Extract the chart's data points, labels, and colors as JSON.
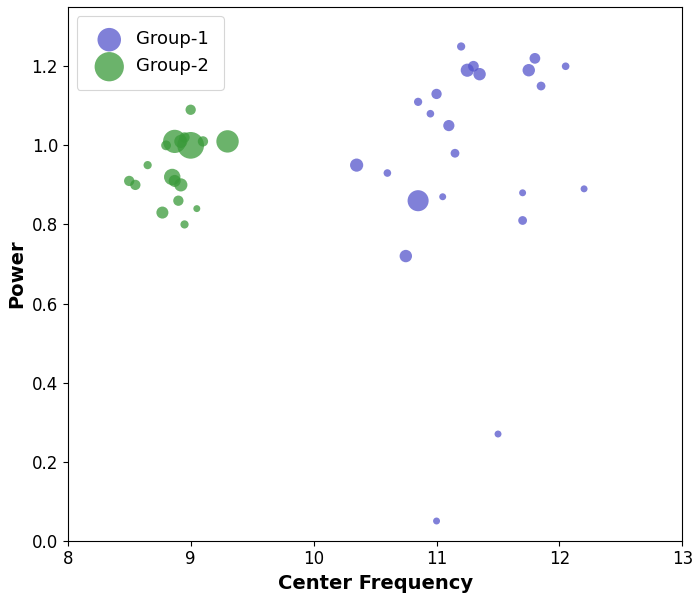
{
  "title": "",
  "xlabel": "Center Frequency",
  "ylabel": "Power",
  "xlim": [
    8,
    13
  ],
  "ylim": [
    0,
    1.35
  ],
  "xticks": [
    8,
    9,
    10,
    11,
    12,
    13
  ],
  "yticks": [
    0.0,
    0.2,
    0.4,
    0.6,
    0.8,
    1.0,
    1.2
  ],
  "group1": {
    "label": "Group-1",
    "color": "#5555cc",
    "x": [
      10.35,
      10.6,
      10.75,
      10.85,
      10.85,
      10.95,
      11.0,
      11.05,
      11.1,
      11.15,
      11.2,
      11.25,
      11.3,
      11.35,
      11.7,
      11.75,
      11.8,
      11.85,
      12.05,
      11.5,
      11.0,
      11.7,
      12.2
    ],
    "y": [
      0.95,
      0.93,
      0.72,
      1.11,
      0.86,
      1.08,
      1.13,
      0.87,
      1.05,
      0.98,
      1.25,
      1.19,
      1.2,
      1.18,
      0.81,
      1.19,
      1.22,
      1.15,
      1.2,
      0.27,
      0.05,
      0.88,
      0.89
    ],
    "size": [
      90,
      30,
      80,
      35,
      230,
      30,
      55,
      25,
      65,
      40,
      35,
      90,
      60,
      80,
      40,
      80,
      60,
      40,
      30,
      25,
      25,
      25,
      25
    ]
  },
  "group2": {
    "label": "Group-2",
    "color": "#3a9a3a",
    "x": [
      8.5,
      8.55,
      8.65,
      8.77,
      8.8,
      8.85,
      8.87,
      8.87,
      8.9,
      8.92,
      8.92,
      8.95,
      8.95,
      9.0,
      9.0,
      9.05,
      9.1,
      9.3
    ],
    "y": [
      0.91,
      0.9,
      0.95,
      0.83,
      1.0,
      0.92,
      1.01,
      0.91,
      0.86,
      1.01,
      0.9,
      1.02,
      0.8,
      1.0,
      1.09,
      0.84,
      1.01,
      1.01
    ],
    "size": [
      55,
      55,
      35,
      75,
      50,
      140,
      280,
      75,
      55,
      90,
      90,
      55,
      35,
      370,
      55,
      25,
      55,
      260
    ]
  },
  "background_color": "#ffffff",
  "legend_fontsize": 13,
  "axis_label_fontsize": 14,
  "tick_fontsize": 12
}
